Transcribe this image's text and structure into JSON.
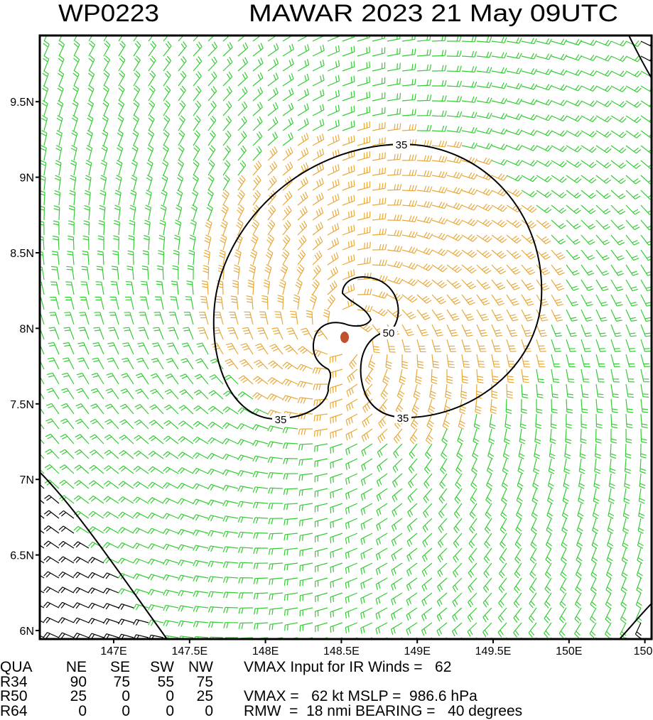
{
  "header": {
    "id": "WP0223",
    "title": "MAWAR 2023 21 May 09UTC"
  },
  "map": {
    "lat_labels": [
      "6N",
      "6.5N",
      "7N",
      "7.5N",
      "8N",
      "8.5N",
      "9N",
      "9.5N"
    ],
    "lon_labels": [
      "147E",
      "147.5E",
      "148E",
      "148.5E",
      "149E",
      "149.5E",
      "150E",
      "150"
    ],
    "contour_labels": [
      "35",
      "35",
      "50"
    ]
  },
  "table": {
    "header": [
      "QUA",
      "NE",
      "SE",
      "SW",
      "NW"
    ],
    "rows": [
      [
        "R34",
        90,
        75,
        55,
        75
      ],
      [
        "R50",
        25,
        0,
        0,
        25
      ],
      [
        "R64",
        0,
        0,
        0,
        0
      ]
    ],
    "notes": [
      "VMAX Input for IR Winds =   62",
      "",
      "VMAX =   62 kt MSLP =  986.6 hPa",
      "RMW  =  18 nmi BEARING =   40 degrees"
    ]
  }
}
